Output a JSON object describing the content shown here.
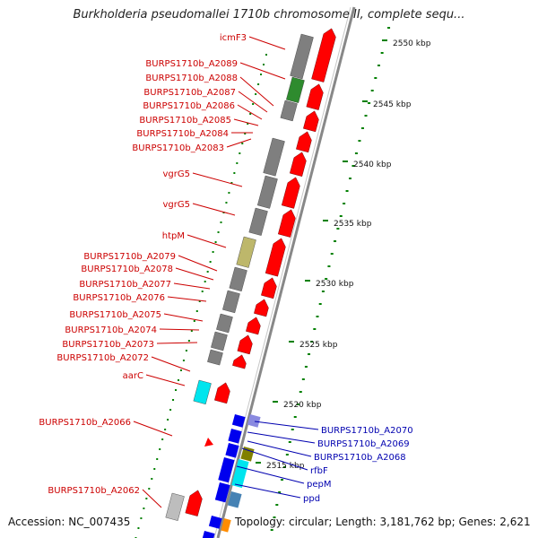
{
  "title": "Burkholderia pseudomallei 1710b chromosome II, complete sequ...",
  "accession": "Accession: NC_007435",
  "summary": "Topology: circular; Length: 3,181,762 bp; Genes: 2,621",
  "colors": {
    "cds_forward": "#ff0000",
    "cds_reverse": "#0000ee",
    "cog_gray": "#7f7f7f",
    "cog_green": "#2e8b2e",
    "cog_olive": "#bdb76b",
    "cog_cyan": "#00e5ee",
    "cog_purple": "#8a8ae0",
    "label_red": "#cc0000",
    "label_blue": "#0000b0",
    "scale_green": "#008000",
    "backbone": "#888888"
  },
  "scale_ticks": [
    "2550 kbp",
    "2545 kbp",
    "2540 kbp",
    "2535 kbp",
    "2530 kbp",
    "2525 kbp",
    "2520 kbp",
    "2515 kbp"
  ],
  "left_labels": [
    "icmF3",
    "BURPS1710b_A2089",
    "BURPS1710b_A2088",
    "BURPS1710b_A2087",
    "BURPS1710b_A2086",
    "BURPS1710b_A2085",
    "BURPS1710b_A2084",
    "BURPS1710b_A2083",
    "vgrG5",
    "vgrG5",
    "htpM",
    "BURPS1710b_A2079",
    "BURPS1710b_A2078",
    "BURPS1710b_A2077",
    "BURPS1710b_A2076",
    "BURPS1710b_A2075",
    "BURPS1710b_A2074",
    "BURPS1710b_A2073",
    "BURPS1710b_A2072",
    "aarC",
    "BURPS1710b_A2066",
    "BURPS1710b_A2062"
  ],
  "right_labels": [
    "BURPS1710b_A2070",
    "BURPS1710b_A2069",
    "BURPS1710b_A2068",
    "rfbF",
    "pepM",
    "ppd"
  ]
}
